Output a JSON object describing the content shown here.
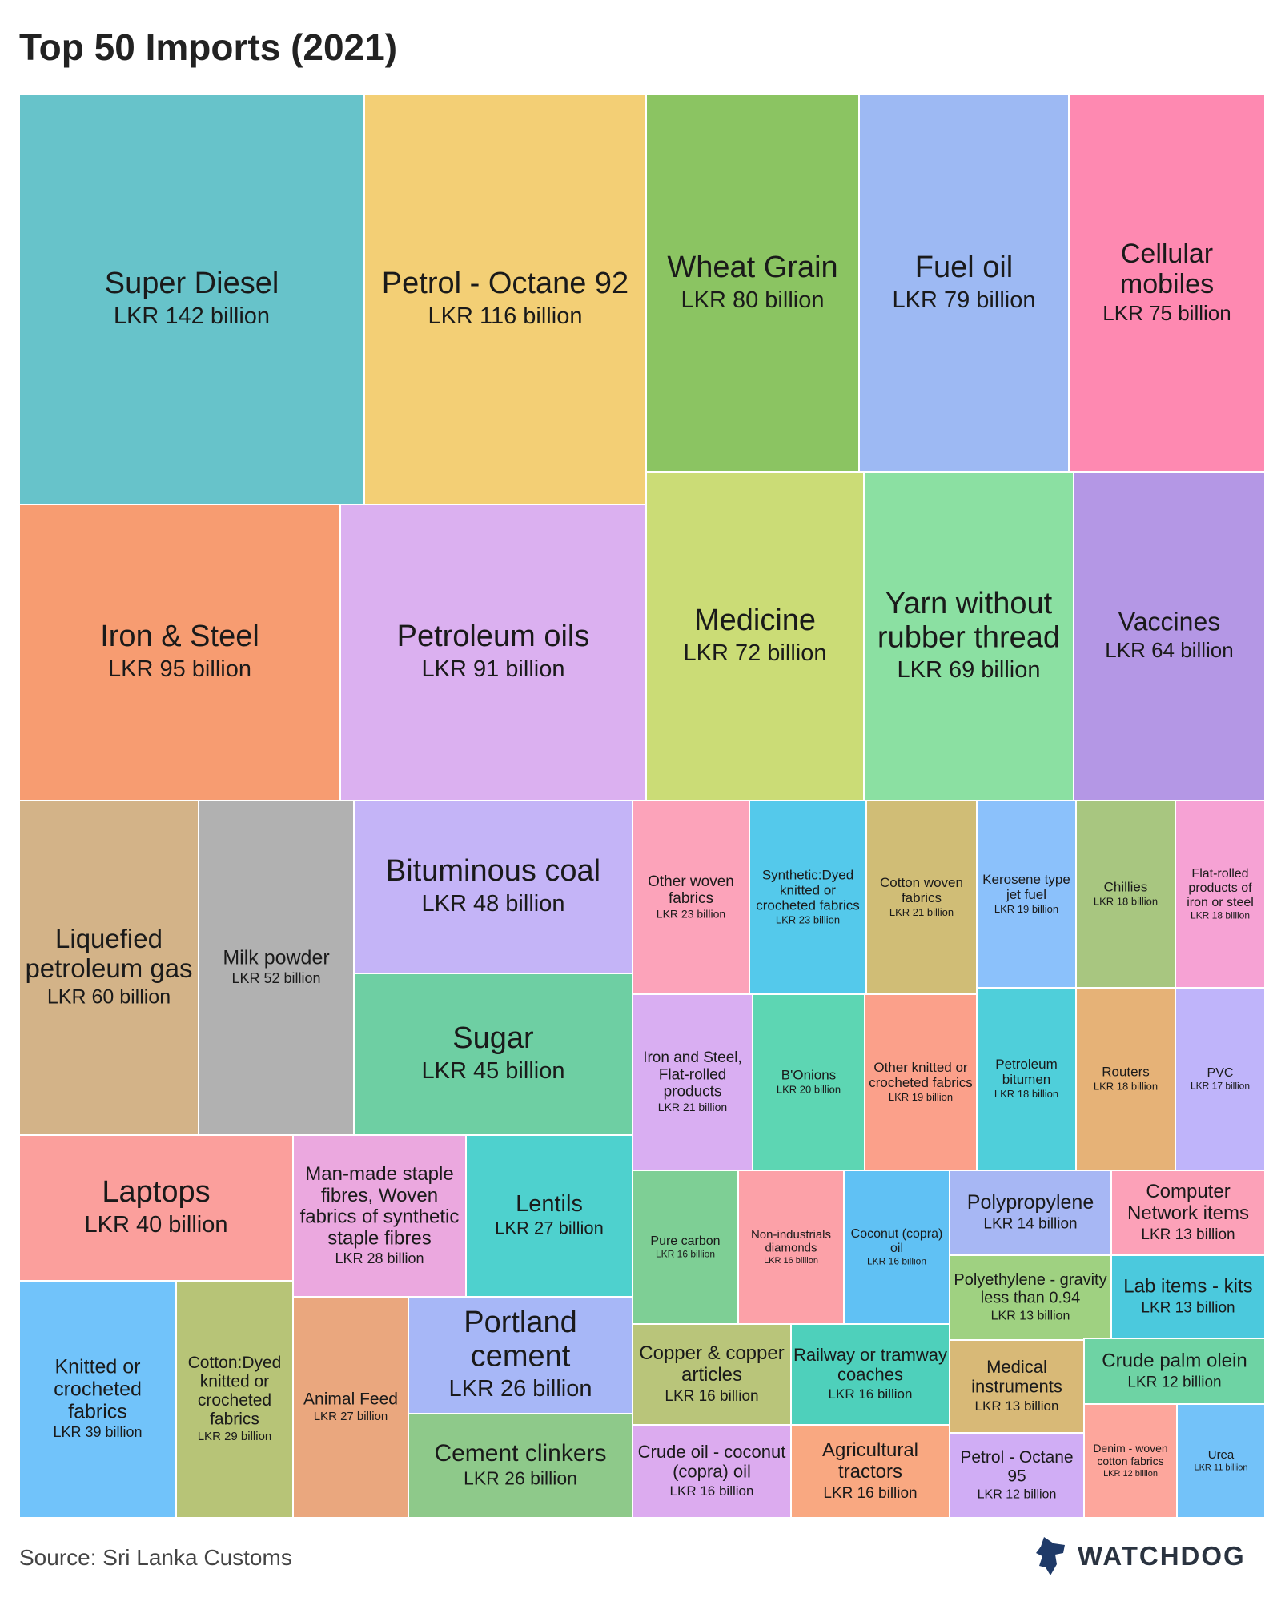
{
  "title": "Top 50 Imports (2021)",
  "source": "Source: Sri Lanka Customs",
  "brand": "WATCHDOG",
  "chart_data": {
    "type": "treemap",
    "unit": "LKR billion",
    "items": [
      {
        "label": "Super Diesel",
        "value_text": "LKR 142 billion",
        "value": 142,
        "color": "#67c3ca"
      },
      {
        "label": "Petrol - Octane 92",
        "value_text": "LKR 116 billion",
        "value": 116,
        "color": "#f3cf75"
      },
      {
        "label": "Wheat Grain",
        "value_text": "LKR 80 billion",
        "value": 80,
        "color": "#8bc462"
      },
      {
        "label": "Fuel oil",
        "value_text": "LKR 79 billion",
        "value": 79,
        "color": "#9db9f3"
      },
      {
        "label": "Cellular mobiles",
        "value_text": "LKR 75 billion",
        "value": 75,
        "color": "#fe89b1"
      },
      {
        "label": "Iron & Steel",
        "value_text": "LKR 95 billion",
        "value": 95,
        "color": "#f79c71"
      },
      {
        "label": "Petroleum oils",
        "value_text": "LKR 91 billion",
        "value": 91,
        "color": "#dbb0f0"
      },
      {
        "label": "Medicine",
        "value_text": "LKR 72 billion",
        "value": 72,
        "color": "#cbdc76"
      },
      {
        "label": "Yarn without rubber thread",
        "value_text": "LKR 69 billion",
        "value": 69,
        "color": "#8be0a2"
      },
      {
        "label": "Vaccines",
        "value_text": "LKR 64 billion",
        "value": 64,
        "color": "#b497e5"
      },
      {
        "label": "Liquefied petroleum gas",
        "value_text": "LKR 60 billion",
        "value": 60,
        "color": "#d3b388"
      },
      {
        "label": "Milk powder",
        "value_text": "LKR 52 billion",
        "value": 52,
        "color": "#b1b1b1"
      },
      {
        "label": "Bituminous coal",
        "value_text": "LKR 48 billion",
        "value": 48,
        "color": "#c4b4f7"
      },
      {
        "label": "Sugar",
        "value_text": "LKR 45 billion",
        "value": 45,
        "color": "#6ecfa3"
      },
      {
        "label": "Laptops",
        "value_text": "LKR 40 billion",
        "value": 40,
        "color": "#fb9f9c"
      },
      {
        "label": "Man-made staple fibres, Woven fabrics of synthetic staple fibres",
        "value_text": "LKR 28 billion",
        "value": 28,
        "color": "#eba8df"
      },
      {
        "label": "Lentils",
        "value_text": "LKR 27 billion",
        "value": 27,
        "color": "#4ed1ce"
      },
      {
        "label": "Knitted or crocheted fabrics",
        "value_text": "LKR 39 billion",
        "value": 39,
        "color": "#71c3fa"
      },
      {
        "label": "Cotton:Dyed knitted or crocheted fabrics",
        "value_text": "LKR 29 billion",
        "value": 29,
        "color": "#b7c477"
      },
      {
        "label": "Animal Feed",
        "value_text": "LKR 27 billion",
        "value": 27,
        "color": "#eaa77e"
      },
      {
        "label": "Portland cement",
        "value_text": "LKR 26 billion",
        "value": 26,
        "color": "#a7b7f7"
      },
      {
        "label": "Cement clinkers",
        "value_text": "LKR 26 billion",
        "value": 26,
        "color": "#8ec98a"
      },
      {
        "label": "Other woven fabrics",
        "value_text": "LKR 23 billion",
        "value": 23,
        "color": "#fca3ba"
      },
      {
        "label": "Synthetic:Dyed knitted or crocheted fabrics",
        "value_text": "LKR 23 billion",
        "value": 23,
        "color": "#54c9eb"
      },
      {
        "label": "Cotton woven fabrics",
        "value_text": "LKR 21 billion",
        "value": 21,
        "color": "#d0bd76"
      },
      {
        "label": "Kerosene type jet fuel",
        "value_text": "LKR 19 billion",
        "value": 19,
        "color": "#8bc1fb"
      },
      {
        "label": "Chillies",
        "value_text": "LKR 18 billion",
        "value": 18,
        "color": "#a8c680"
      },
      {
        "label": "Flat-rolled products of iron or steel",
        "value_text": "LKR 18 billion",
        "value": 18,
        "color": "#f6a2d4"
      },
      {
        "label": "Iron and Steel, Flat-rolled products",
        "value_text": "LKR 21 billion",
        "value": 21,
        "color": "#d9aef2"
      },
      {
        "label": "B'Onions",
        "value_text": "LKR 20 billion",
        "value": 20,
        "color": "#5dd6b3"
      },
      {
        "label": "Other knitted or crocheted fabrics",
        "value_text": "LKR 19 billion",
        "value": 19,
        "color": "#fba08a"
      },
      {
        "label": "Petroleum bitumen",
        "value_text": "LKR 18 billion",
        "value": 18,
        "color": "#4fcfda"
      },
      {
        "label": "Routers",
        "value_text": "LKR 18 billion",
        "value": 18,
        "color": "#e6b277"
      },
      {
        "label": "PVC",
        "value_text": "LKR 17 billion",
        "value": 17,
        "color": "#bfb4fa"
      },
      {
        "label": "Pure carbon",
        "value_text": "LKR 16 billion",
        "value": 16,
        "color": "#7ecf95"
      },
      {
        "label": "Non-industrials diamonds",
        "value_text": "LKR 16 billion",
        "value": 16,
        "color": "#fca1a8"
      },
      {
        "label": "Coconut (copra) oil",
        "value_text": "LKR 16 billion",
        "value": 16,
        "color": "#60c1f4"
      },
      {
        "label": "Polypropylene",
        "value_text": "LKR 14 billion",
        "value": 14,
        "color": "#a7b7f4"
      },
      {
        "label": "Computer Network items",
        "value_text": "LKR 13 billion",
        "value": 13,
        "color": "#fca1b8"
      },
      {
        "label": "Polyethylene - gravity less than 0.94",
        "value_text": "LKR 13 billion",
        "value": 13,
        "color": "#9fd181"
      },
      {
        "label": "Lab items - kits",
        "value_text": "LKR 13 billion",
        "value": 13,
        "color": "#4bc9dd"
      },
      {
        "label": "Copper & copper articles",
        "value_text": "LKR 16 billion",
        "value": 16,
        "color": "#b9c57a"
      },
      {
        "label": "Railway or tramway coaches",
        "value_text": "LKR 16 billion",
        "value": 16,
        "color": "#4ed0bb"
      },
      {
        "label": "Medical instruments",
        "value_text": "LKR 13 billion",
        "value": 13,
        "color": "#d8b977"
      },
      {
        "label": "Crude palm olein",
        "value_text": "LKR 12 billion",
        "value": 12,
        "color": "#6ed3a4"
      },
      {
        "label": "Crude oil - coconut (copra) oil",
        "value_text": "LKR 16 billion",
        "value": 16,
        "color": "#dcabef"
      },
      {
        "label": "Agricultural tractors",
        "value_text": "LKR 16 billion",
        "value": 16,
        "color": "#f9a881"
      },
      {
        "label": "Petrol - Octane 95",
        "value_text": "LKR 12 billion",
        "value": 12,
        "color": "#d0adf5"
      },
      {
        "label": "Denim - woven cotton fabrics",
        "value_text": "LKR 12 billion",
        "value": 12,
        "color": "#fda69c"
      },
      {
        "label": "Urea",
        "value_text": "LKR 11 billion",
        "value": 11,
        "color": "#73c2f9"
      }
    ]
  }
}
